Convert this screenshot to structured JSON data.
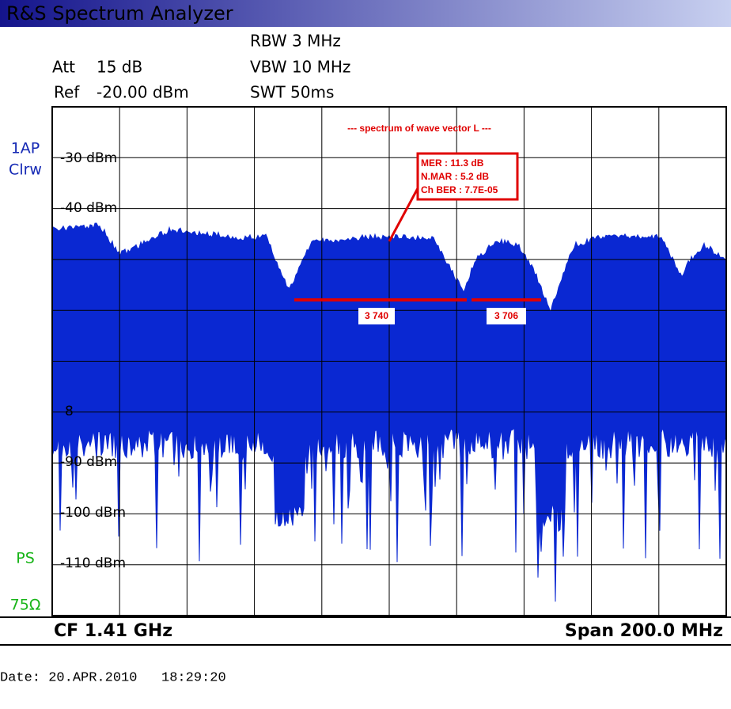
{
  "window": {
    "title": "R&S Spectrum Analyzer"
  },
  "settings": {
    "rbw": "RBW 3 MHz",
    "att": "Att",
    "att_value": "15 dB",
    "vbw": "VBW 10 MHz",
    "ref": "Ref",
    "ref_value": "-20.00 dBm",
    "swt": "SWT 50ms"
  },
  "side_labels": {
    "trace": "1AP",
    "mode": "Clrw",
    "ps": "PS",
    "impedance": "75Ω"
  },
  "y_labels": [
    "-30 dBm",
    "-40 dBm",
    "8",
    "-90 dBm",
    "-100 dBm",
    "-110 dBm"
  ],
  "annotation": {
    "title": "--- spectrum of wave vector L ---",
    "mer": "MER : 11.3 dB",
    "nmar": "N.MAR : 5.2 dB",
    "ber": "Ch BER : 7.7E-05"
  },
  "channels": [
    "3 740",
    "3 706"
  ],
  "footer": {
    "cf": "CF 1.41 GHz",
    "span": "Span 200.0 MHz"
  },
  "date": "Date: 20.APR.2010   18:29:20"
}
